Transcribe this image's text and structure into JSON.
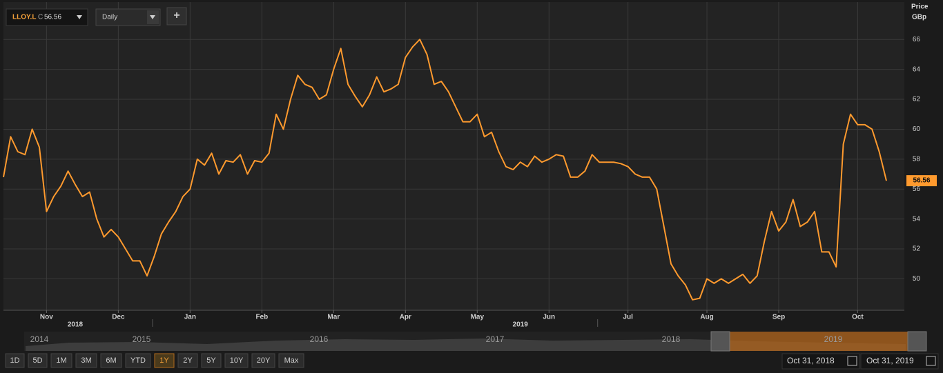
{
  "chart_data": {
    "type": "line",
    "axis_title": "Price",
    "axis_unit": "GBp",
    "categories": [
      null,
      null,
      null,
      null,
      null,
      null,
      "Nov",
      null,
      null,
      null,
      null,
      null,
      null,
      null,
      null,
      null,
      "Dec",
      null,
      null,
      null,
      null,
      null,
      null,
      null,
      null,
      null,
      "Jan",
      null,
      null,
      null,
      null,
      null,
      null,
      null,
      null,
      null,
      "Feb",
      null,
      null,
      null,
      null,
      null,
      null,
      null,
      null,
      null,
      "Mar",
      null,
      null,
      null,
      null,
      null,
      null,
      null,
      null,
      null,
      "Apr",
      null,
      null,
      null,
      null,
      null,
      null,
      null,
      null,
      null,
      "May",
      null,
      null,
      null,
      null,
      null,
      null,
      null,
      null,
      null,
      "Jun",
      null,
      null,
      null,
      null,
      null,
      null,
      null,
      null,
      null,
      null,
      "Jul",
      null,
      null,
      null,
      null,
      null,
      null,
      null,
      null,
      null,
      null,
      "Aug",
      null,
      null,
      null,
      null,
      null,
      null,
      null,
      null,
      null,
      "Sep",
      null,
      null,
      null,
      null,
      null,
      null,
      null,
      null,
      null,
      null,
      "Oct",
      null,
      null,
      null,
      null
    ],
    "year_categories": [
      null,
      null,
      null,
      null,
      null,
      null,
      null,
      null,
      null,
      null,
      "2018",
      null,
      null,
      null,
      null,
      null,
      null,
      null,
      null,
      null,
      null,
      null,
      null,
      null,
      null,
      null,
      null,
      null,
      null,
      null,
      null,
      null,
      null,
      null,
      null,
      null,
      null,
      null,
      null,
      null,
      null,
      null,
      null,
      null,
      null,
      null,
      null,
      null,
      null,
      null,
      null,
      null,
      null,
      null,
      null,
      null,
      null,
      null,
      null,
      null,
      null,
      null,
      null,
      null,
      null,
      null,
      null,
      null,
      null,
      null,
      null,
      null,
      "2019",
      null,
      null,
      null,
      null,
      null,
      null,
      null,
      null,
      null,
      null,
      null,
      null,
      null,
      null,
      null,
      null,
      null,
      null,
      null,
      null,
      null,
      null,
      null,
      null,
      null,
      null,
      null,
      null,
      null,
      null,
      null,
      null,
      null,
      null,
      null,
      null,
      null,
      null,
      null,
      null,
      null,
      null,
      null,
      null,
      null,
      null,
      null,
      null,
      null,
      null,
      null,
      null
    ],
    "series": [
      {
        "name": "LLOY.L",
        "color": "#ff9a2e",
        "values": [
          56.8,
          59.5,
          58.5,
          58.3,
          60.0,
          58.8,
          54.5,
          55.5,
          56.2,
          57.2,
          56.3,
          55.5,
          55.8,
          54.0,
          52.8,
          53.3,
          52.8,
          52.0,
          51.2,
          51.2,
          50.2,
          51.5,
          53.0,
          53.8,
          54.5,
          55.5,
          56.0,
          58.0,
          57.6,
          58.4,
          57.0,
          57.9,
          57.8,
          58.3,
          57.0,
          57.9,
          57.8,
          58.4,
          61.0,
          60.0,
          62.0,
          63.6,
          63.0,
          62.8,
          62.0,
          62.3,
          64.0,
          65.4,
          63.0,
          62.2,
          61.5,
          62.3,
          63.5,
          62.5,
          62.7,
          63.0,
          64.8,
          65.5,
          66.0,
          65.0,
          63.0,
          63.2,
          62.5,
          61.5,
          60.5,
          60.5,
          61.0,
          59.5,
          59.8,
          58.5,
          57.5,
          57.3,
          57.8,
          57.5,
          58.2,
          57.8,
          58.0,
          58.3,
          58.2,
          56.8,
          56.8,
          57.2,
          58.3,
          57.8,
          57.8,
          57.8,
          57.7,
          57.5,
          57.0,
          56.8,
          56.8,
          56.0,
          53.5,
          51.0,
          50.2,
          49.6,
          48.6,
          48.7,
          50.0,
          49.7,
          50.0,
          49.7,
          50.0,
          50.3,
          49.7,
          50.2,
          52.5,
          54.5,
          53.2,
          53.8,
          55.3,
          53.5,
          53.8,
          54.5,
          51.8,
          51.8,
          50.8,
          59.0,
          61.0,
          60.3,
          60.3,
          60.0,
          58.5,
          56.56
        ]
      }
    ],
    "ylim": [
      47.9,
      68.5
    ],
    "yticks": [
      50,
      52,
      54,
      56,
      58,
      60,
      62,
      64,
      66
    ],
    "grid": true
  },
  "ui": {
    "symbol": "LLOY.L",
    "close_prefix": "C",
    "interval": "Daily",
    "add": "+",
    "navigator": {
      "years": [
        "2014",
        "2015",
        "2016",
        "2017",
        "2018",
        "2019"
      ]
    },
    "ranges": [
      "1D",
      "5D",
      "1M",
      "3M",
      "6M",
      "YTD",
      "1Y",
      "2Y",
      "5Y",
      "10Y",
      "20Y",
      "Max"
    ],
    "active_range": "1Y",
    "date_from": "Oct 31, 2018",
    "date_to": "Oct 31, 2019"
  }
}
